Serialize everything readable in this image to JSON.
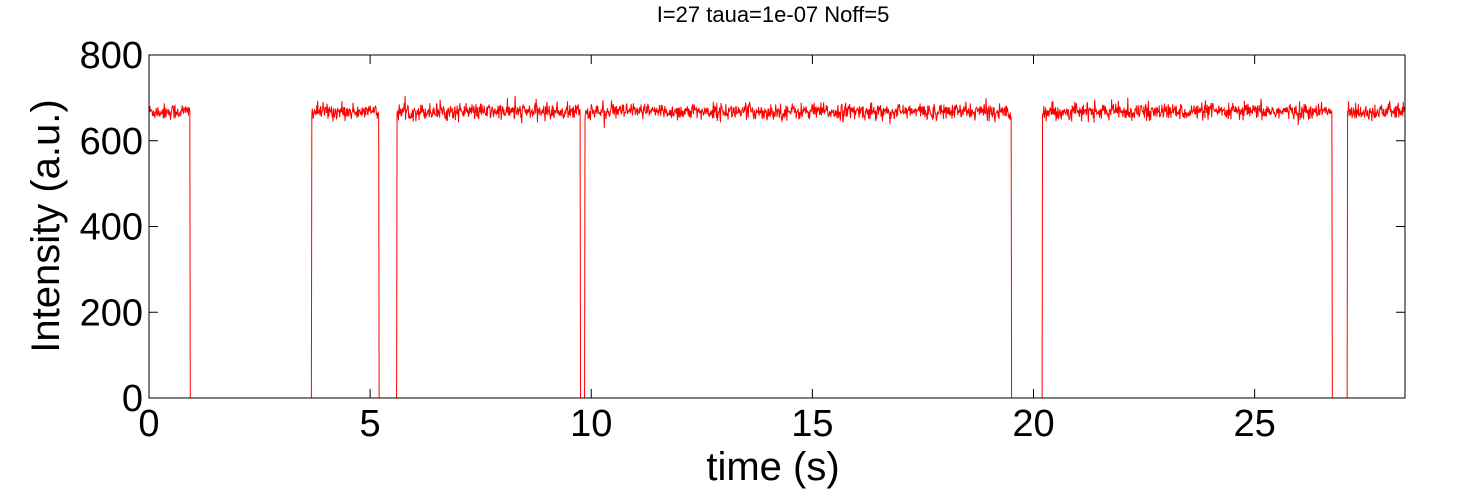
{
  "chart_data": {
    "type": "line",
    "title": "I=27 taua=1e-07 Noff=5",
    "xlabel": "time (s)",
    "ylabel": "Intensity (a.u.)",
    "xlim": [
      0,
      28.4
    ],
    "ylim": [
      0,
      800
    ],
    "xticks": [
      0,
      5,
      10,
      15,
      20,
      25
    ],
    "yticks": [
      0,
      200,
      400,
      600,
      800
    ],
    "xtick_labels": [
      "0",
      "5",
      "10",
      "15",
      "20",
      "25"
    ],
    "ytick_labels": [
      "0",
      "200",
      "400",
      "600",
      "800"
    ],
    "grid": false,
    "legend": false,
    "series": [
      {
        "color": "#ff0000",
        "baseline": 668,
        "noise_amplitude": 12,
        "on_intervals": [
          [
            0.0,
            0.93
          ],
          [
            3.68,
            5.2
          ],
          [
            5.6,
            9.75
          ],
          [
            9.85,
            19.5
          ],
          [
            20.2,
            26.75
          ],
          [
            27.1,
            28.4
          ]
        ],
        "off_value": 0
      }
    ]
  }
}
